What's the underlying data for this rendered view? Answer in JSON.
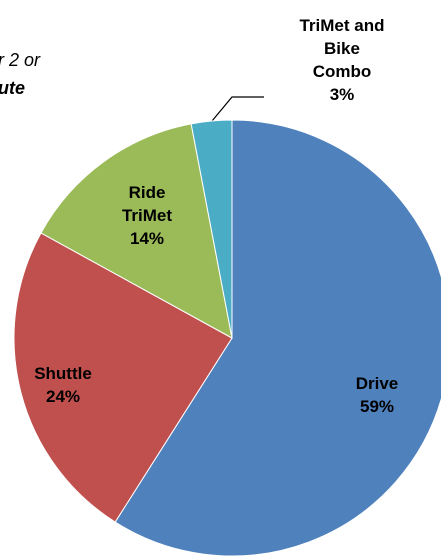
{
  "chart_data": {
    "type": "pie",
    "annotations": [
      "r 2 or",
      "ute"
    ],
    "categories": [
      "Drive",
      "Shuttle",
      "Ride TriMet",
      "TriMet and Bike Combo"
    ],
    "values": [
      59,
      24,
      14,
      3
    ],
    "value_labels": [
      "59%",
      "24%",
      "14%",
      "3%"
    ],
    "colors": [
      "#4f81bd",
      "#c0504d",
      "#9bbb59",
      "#4bacc6"
    ]
  }
}
